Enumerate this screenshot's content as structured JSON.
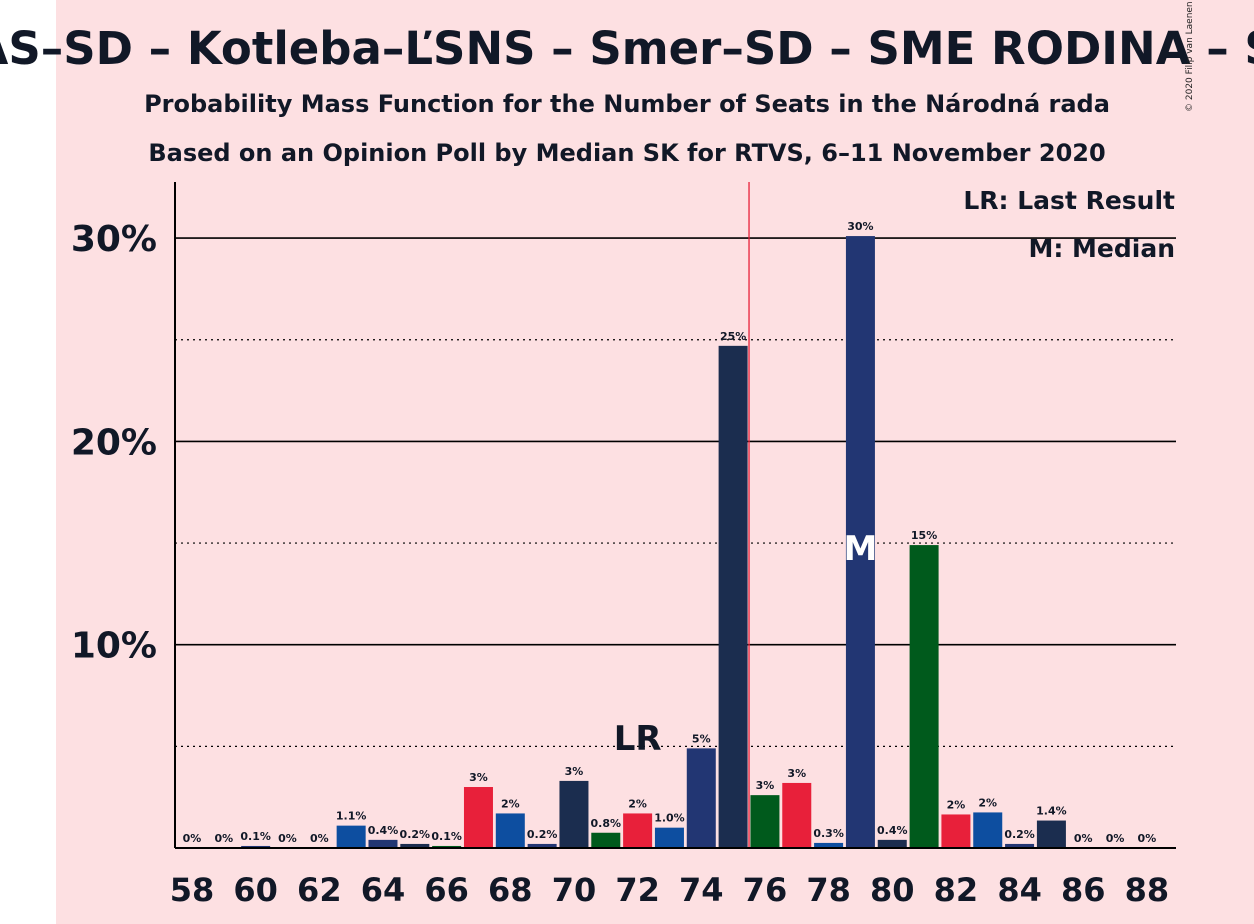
{
  "chart_data": {
    "type": "bar",
    "title": "HLAS–SD – Kotleba–ĽSNS – Smer–SD – SME RODINA – SNS",
    "subtitle_1": "Probability Mass Function for the Number of Seats in the Národná rada",
    "subtitle_2": "Based on an Opinion Poll by Median SK for RTVS, 6–11 November 2020",
    "copyright": "© 2020 Filip van Laenen",
    "xlabel": "",
    "ylabel": "",
    "ylim": [
      0,
      32.8
    ],
    "y_ticks": [
      {
        "value": 10,
        "label": "10%"
      },
      {
        "value": 20,
        "label": "20%"
      },
      {
        "value": 30,
        "label": "30%"
      }
    ],
    "dotted_gridlines": [
      5,
      15,
      25
    ],
    "x_ticks": [
      "58",
      "60",
      "62",
      "64",
      "66",
      "68",
      "70",
      "72",
      "74",
      "76",
      "78",
      "80",
      "82",
      "84",
      "86",
      "88"
    ],
    "bars": [
      {
        "seats": 58,
        "value": 0,
        "label": "0%",
        "color": "#1b2d4f"
      },
      {
        "seats": 59,
        "value": 0,
        "label": "0%",
        "color": "#1b2d4f"
      },
      {
        "seats": 60,
        "value": 0.1,
        "label": "0.1%",
        "color": "#223673"
      },
      {
        "seats": 61,
        "value": 0,
        "label": "0%",
        "color": "#1b2d4f"
      },
      {
        "seats": 62,
        "value": 0,
        "label": "0%",
        "color": "#1b2d4f"
      },
      {
        "seats": 63,
        "value": 1.1,
        "label": "1.1%",
        "color": "#0d4ea0"
      },
      {
        "seats": 64,
        "value": 0.4,
        "label": "0.4%",
        "color": "#223673"
      },
      {
        "seats": 65,
        "value": 0.2,
        "label": "0.2%",
        "color": "#1b2d4f"
      },
      {
        "seats": 66,
        "value": 0.1,
        "label": "0.1%",
        "color": "#005a1c"
      },
      {
        "seats": 67,
        "value": 3.0,
        "label": "3%",
        "color": "#e8203a"
      },
      {
        "seats": 68,
        "value": 1.7,
        "label": "2%",
        "color": "#0d4ea0"
      },
      {
        "seats": 69,
        "value": 0.2,
        "label": "0.2%",
        "color": "#223673"
      },
      {
        "seats": 70,
        "value": 3.3,
        "label": "3%",
        "color": "#1b2d4f"
      },
      {
        "seats": 71,
        "value": 0.75,
        "label": "0.8%",
        "color": "#005a1c"
      },
      {
        "seats": 72,
        "value": 1.7,
        "label": "2%",
        "color": "#e8203a"
      },
      {
        "seats": 73,
        "value": 1.0,
        "label": "1.0%",
        "color": "#0d4ea0"
      },
      {
        "seats": 74,
        "value": 4.9,
        "label": "5%",
        "color": "#223673"
      },
      {
        "seats": 75,
        "value": 24.7,
        "label": "25%",
        "color": "#1b2d4f"
      },
      {
        "seats": 76,
        "value": 2.6,
        "label": "3%",
        "color": "#005a1c"
      },
      {
        "seats": 77,
        "value": 3.2,
        "label": "3%",
        "color": "#e8203a"
      },
      {
        "seats": 78,
        "value": 0.25,
        "label": "0.3%",
        "color": "#0d4ea0"
      },
      {
        "seats": 79,
        "value": 30.1,
        "label": "30%",
        "color": "#223673"
      },
      {
        "seats": 80,
        "value": 0.4,
        "label": "0.4%",
        "color": "#1b2d4f"
      },
      {
        "seats": 81,
        "value": 14.9,
        "label": "15%",
        "color": "#005a1c"
      },
      {
        "seats": 82,
        "value": 1.65,
        "label": "2%",
        "color": "#e8203a"
      },
      {
        "seats": 83,
        "value": 1.75,
        "label": "2%",
        "color": "#0d4ea0"
      },
      {
        "seats": 84,
        "value": 0.2,
        "label": "0.2%",
        "color": "#223673"
      },
      {
        "seats": 85,
        "value": 1.35,
        "label": "1.4%",
        "color": "#1b2d4f"
      },
      {
        "seats": 86,
        "value": 0,
        "label": "0%",
        "color": "#005a1c"
      },
      {
        "seats": 87,
        "value": 0,
        "label": "0%",
        "color": "#e8203a"
      },
      {
        "seats": 88,
        "value": 0,
        "label": "0%",
        "color": "#0d4ea0"
      }
    ],
    "majority_line_seats": 75.5,
    "majority_line_color": "#e8203a",
    "last_result": {
      "seats": 72,
      "marker": "LR"
    },
    "median": {
      "seats": 79,
      "marker": "M"
    },
    "legend": {
      "placement": "top-right",
      "items": [
        "LR: Last Result",
        "M: Median"
      ]
    },
    "colors": {
      "background": "#fde0e2",
      "text": "#111827",
      "axis": "#000000"
    }
  }
}
